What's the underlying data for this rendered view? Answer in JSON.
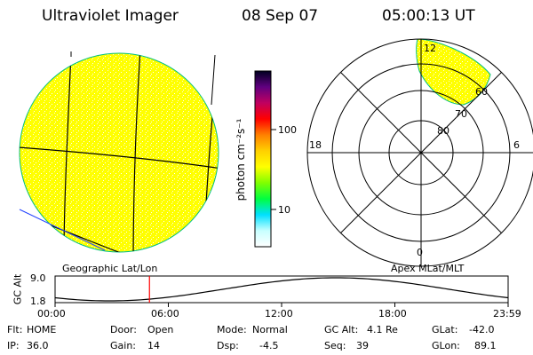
{
  "header": {
    "instrument": "Ultraviolet Imager",
    "date": "08 Sep 07",
    "time": "05:00:13 UT"
  },
  "colorbar": {
    "unit_label": "photon cm⁻²s⁻¹",
    "tick_high": "100",
    "tick_low": "10",
    "stops": [
      "#ffffff",
      "#c8ffff",
      "#00e0ff",
      "#00ff40",
      "#80ff00",
      "#ffff00",
      "#ffd000",
      "#ff8000",
      "#ff0000",
      "#c00060",
      "#600080",
      "#000020"
    ]
  },
  "left_panel": {
    "caption": "Geographic Lat/Lon",
    "fill_color": "#ffff00"
  },
  "right_panel": {
    "caption": "Apex MLat/MLT",
    "mlt_labels": {
      "top": "12",
      "left": "18",
      "right": "6",
      "bottom": "0"
    },
    "mlat_labels": [
      "80",
      "70",
      "60"
    ]
  },
  "altitude_strip": {
    "axis_title": "GC Alt",
    "y_max": "9.0",
    "y_min": "1.8",
    "time_ticks": [
      "00:00",
      "06:00",
      "12:00",
      "18:00",
      "23:59"
    ],
    "marker_color": "#ff0000",
    "marker_time_hours": 5.0
  },
  "status": {
    "filter_label": "Flt:",
    "filter_value": "HOME",
    "ip_label": "IP:",
    "ip_value": "36.0",
    "door_label": "Door:",
    "door_value": "Open",
    "gain_label": "Gain:",
    "gain_value": "14",
    "mode_label": "Mode:",
    "mode_value": "Normal",
    "dsp_label": "Dsp:",
    "dsp_value": "-4.5",
    "gcalt_label": "GC Alt:",
    "gcalt_value": "4.1 Re",
    "seq_label": "Seq:",
    "seq_value": "39",
    "glat_label": "GLat:",
    "glat_value": "-42.0",
    "glon_label": "GLon:",
    "glon_value": "89.1"
  }
}
